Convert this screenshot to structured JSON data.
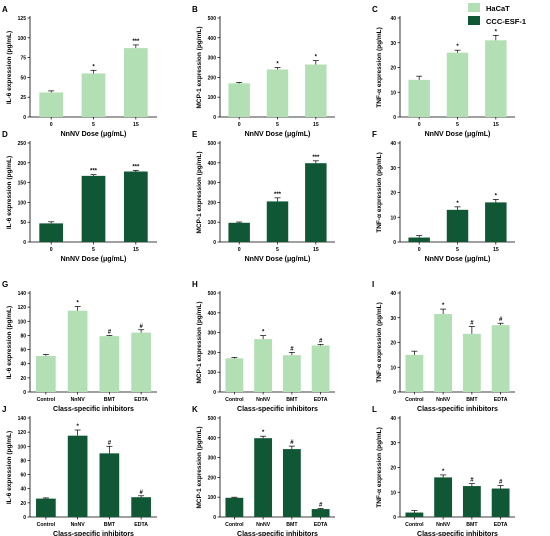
{
  "legend": {
    "placement": "top-right",
    "items": [
      {
        "label": "HaCaT",
        "color": "#b3dfb5"
      },
      {
        "label": "CCC-ESF-1",
        "color": "#0f5735"
      }
    ]
  },
  "colors": {
    "light": "#b3dfb5",
    "dark": "#0f5735",
    "axis": "#000000"
  },
  "chart_data": [
    {
      "type": "bar",
      "panel": "A",
      "series": "HaCaT",
      "ylabel": "IL-6 expression (pg/mL)",
      "xlabel": "NnNV Dose (μg/mL)",
      "categories": [
        "0",
        "5",
        "15"
      ],
      "values": [
        31,
        55,
        87
      ],
      "errors": [
        2,
        4,
        4
      ],
      "sig": [
        "",
        "*",
        "***"
      ],
      "ylim": [
        0,
        125
      ],
      "yticks": [
        0,
        25,
        50,
        75,
        100,
        125
      ]
    },
    {
      "type": "bar",
      "panel": "B",
      "series": "HaCaT",
      "ylabel": "MCP-1 expression (pg/mL)",
      "xlabel": "NnNV Dose (μg/mL)",
      "categories": [
        "0",
        "5",
        "15"
      ],
      "values": [
        170,
        240,
        265
      ],
      "errors": [
        5,
        10,
        20
      ],
      "sig": [
        "",
        "*",
        "*"
      ],
      "ylim": [
        0,
        500
      ],
      "yticks": [
        0,
        100,
        200,
        300,
        400,
        500
      ]
    },
    {
      "type": "bar",
      "panel": "C",
      "series": "HaCaT",
      "ylabel": "TNF-α expression (pg/mL)",
      "xlabel": "NnNV Dose (μg/mL)",
      "categories": [
        "0",
        "5",
        "15"
      ],
      "values": [
        15,
        26,
        31
      ],
      "errors": [
        1.5,
        1,
        2
      ],
      "sig": [
        "",
        "*",
        "*"
      ],
      "ylim": [
        0,
        40
      ],
      "yticks": [
        0,
        10,
        20,
        30,
        40
      ]
    },
    {
      "type": "bar",
      "panel": "D",
      "series": "CCC-ESF-1",
      "ylabel": "IL-6 expression (pg/mL)",
      "xlabel": "NnNV Dose (μg/mL)",
      "categories": [
        "0",
        "5",
        "15"
      ],
      "values": [
        47,
        167,
        178
      ],
      "errors": [
        4,
        3,
        3
      ],
      "sig": [
        "",
        "***",
        "***"
      ],
      "ylim": [
        0,
        250
      ],
      "yticks": [
        0,
        50,
        100,
        150,
        200,
        250
      ]
    },
    {
      "type": "bar",
      "panel": "E",
      "series": "CCC-ESF-1",
      "ylabel": "MCP-1 expression (pg/mL)",
      "xlabel": "NnNV Dose (μg/mL)",
      "categories": [
        "0",
        "5",
        "15"
      ],
      "values": [
        97,
        205,
        398
      ],
      "errors": [
        4,
        18,
        12
      ],
      "sig": [
        "",
        "***",
        "***"
      ],
      "ylim": [
        0,
        500
      ],
      "yticks": [
        0,
        100,
        200,
        300,
        400,
        500
      ]
    },
    {
      "type": "bar",
      "panel": "F",
      "series": "CCC-ESF-1",
      "ylabel": "TNF-α expression (pg/mL)",
      "xlabel": "NnNV Dose (μg/mL)",
      "categories": [
        "0",
        "5",
        "15"
      ],
      "values": [
        1.8,
        13,
        16
      ],
      "errors": [
        0.8,
        1.2,
        1.2
      ],
      "sig": [
        "",
        "*",
        "*"
      ],
      "ylim": [
        0,
        40
      ],
      "yticks": [
        0,
        10,
        20,
        30,
        40
      ]
    },
    {
      "type": "bar",
      "panel": "G",
      "series": "HaCaT",
      "ylabel": "IL-6 expression (pg/mL)",
      "xlabel": "Class-specific inhibitors",
      "categories": [
        "Control",
        "NnNV",
        "BMT",
        "EDTA"
      ],
      "values": [
        51,
        115,
        79,
        84
      ],
      "errors": [
        2,
        6,
        1,
        4
      ],
      "sig": [
        "",
        "*",
        "#",
        "#"
      ],
      "ylim": [
        0,
        140
      ],
      "yticks": [
        0,
        20,
        40,
        60,
        80,
        100,
        120,
        140
      ]
    },
    {
      "type": "bar",
      "panel": "H",
      "series": "HaCaT",
      "ylabel": "MCP-1 expression (pg/mL)",
      "xlabel": "Class-specific inhibitors",
      "categories": [
        "Control",
        "NnNV",
        "BMT",
        "EDTA"
      ],
      "values": [
        170,
        267,
        186,
        235
      ],
      "errors": [
        5,
        18,
        14,
        5
      ],
      "sig": [
        "",
        "*",
        "#",
        "#"
      ],
      "ylim": [
        0,
        500
      ],
      "yticks": [
        0,
        100,
        200,
        300,
        400,
        500
      ]
    },
    {
      "type": "bar",
      "panel": "I",
      "series": "HaCaT",
      "ylabel": "TNF-α expression (pg/mL)",
      "xlabel": "Class-specific inhibitors",
      "categories": [
        "Control",
        "NnNV",
        "BMT",
        "EDTA"
      ],
      "values": [
        15,
        31.5,
        23.5,
        27
      ],
      "errors": [
        1.5,
        2,
        3,
        0.8
      ],
      "sig": [
        "",
        "*",
        "#",
        "#"
      ],
      "ylim": [
        0,
        40
      ],
      "yticks": [
        0,
        10,
        20,
        30,
        40
      ]
    },
    {
      "type": "bar",
      "panel": "J",
      "series": "CCC-ESF-1",
      "ylabel": "IL-6 expression (pg/mL)",
      "xlabel": "Class-specific inhibitors",
      "categories": [
        "Control",
        "NnNV",
        "BMT",
        "EDTA"
      ],
      "values": [
        26,
        115,
        90,
        28
      ],
      "errors": [
        1,
        8,
        10,
        2
      ],
      "sig": [
        "",
        "*",
        "#",
        "#"
      ],
      "ylim": [
        0,
        140
      ],
      "yticks": [
        0,
        20,
        40,
        60,
        80,
        100,
        120,
        140
      ]
    },
    {
      "type": "bar",
      "panel": "K",
      "series": "CCC-ESF-1",
      "ylabel": "MCP-1 expression (pg/mL)",
      "xlabel": "Class-specific inhibitors",
      "categories": [
        "Control",
        "NnNV",
        "BMT",
        "EDTA"
      ],
      "values": [
        97,
        398,
        343,
        40
      ],
      "errors": [
        3,
        10,
        15,
        3
      ],
      "sig": [
        "",
        "*",
        "#",
        "#"
      ],
      "ylim": [
        0,
        500
      ],
      "yticks": [
        0,
        100,
        200,
        300,
        400,
        500
      ]
    },
    {
      "type": "bar",
      "panel": "L",
      "series": "CCC-ESF-1",
      "ylabel": "TNF-α expression (pg/mL)",
      "xlabel": "Class-specific inhibitors",
      "categories": [
        "Control",
        "NnNV",
        "BMT",
        "EDTA"
      ],
      "values": [
        1.8,
        16,
        12.5,
        11.5
      ],
      "errors": [
        0.8,
        1,
        1,
        1.2
      ],
      "sig": [
        "",
        "*",
        "#",
        "#"
      ],
      "ylim": [
        0,
        40
      ],
      "yticks": [
        0,
        10,
        20,
        30,
        40
      ]
    }
  ]
}
